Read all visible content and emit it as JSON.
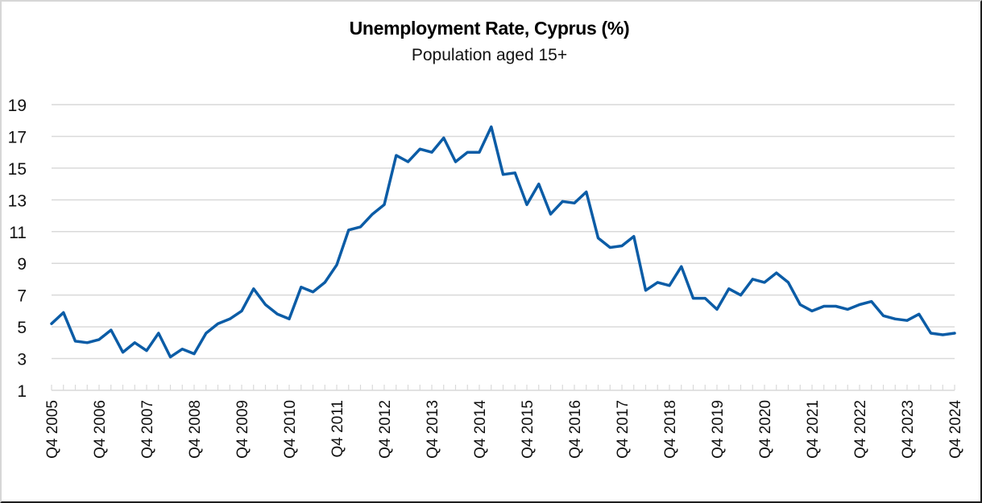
{
  "chart_data": {
    "type": "line",
    "title": "Unemployment Rate, Cyprus (%)",
    "subtitle": "Population aged 15+",
    "xlabel": "",
    "ylabel": "",
    "ylim": [
      1,
      19
    ],
    "yticks": [
      1,
      3,
      5,
      7,
      9,
      11,
      13,
      15,
      17,
      19
    ],
    "grid": true,
    "legend": null,
    "x_tick_labels": [
      "Q4 2005",
      "Q4 2006",
      "Q4 2007",
      "Q4 2008",
      "Q4 2009",
      "Q4 2010",
      "Q4 2011",
      "Q4 2012",
      "Q4 2013",
      "Q4 2014",
      "Q4 2015",
      "Q4 2016",
      "Q4 2017",
      "Q4 2018",
      "Q4 2019",
      "Q4 2020",
      "Q4 2021",
      "Q4 2022",
      "Q4 2023",
      "Q4 2024"
    ],
    "x": [
      "Q4 2005",
      "Q1 2006",
      "Q2 2006",
      "Q3 2006",
      "Q4 2006",
      "Q1 2007",
      "Q2 2007",
      "Q3 2007",
      "Q4 2007",
      "Q1 2008",
      "Q2 2008",
      "Q3 2008",
      "Q4 2008",
      "Q1 2009",
      "Q2 2009",
      "Q3 2009",
      "Q4 2009",
      "Q1 2010",
      "Q2 2010",
      "Q3 2010",
      "Q4 2010",
      "Q1 2011",
      "Q2 2011",
      "Q3 2011",
      "Q4 2011",
      "Q1 2012",
      "Q2 2012",
      "Q3 2012",
      "Q4 2012",
      "Q1 2013",
      "Q2 2013",
      "Q3 2013",
      "Q4 2013",
      "Q1 2014",
      "Q2 2014",
      "Q3 2014",
      "Q4 2014",
      "Q1 2015",
      "Q2 2015",
      "Q3 2015",
      "Q4 2015",
      "Q1 2016",
      "Q2 2016",
      "Q3 2016",
      "Q4 2016",
      "Q1 2017",
      "Q2 2017",
      "Q3 2017",
      "Q4 2017",
      "Q1 2018",
      "Q2 2018",
      "Q3 2018",
      "Q4 2018",
      "Q1 2019",
      "Q2 2019",
      "Q3 2019",
      "Q4 2019",
      "Q1 2020",
      "Q2 2020",
      "Q3 2020",
      "Q4 2020",
      "Q1 2021",
      "Q2 2021",
      "Q3 2021",
      "Q4 2021",
      "Q1 2022",
      "Q2 2022",
      "Q3 2022",
      "Q4 2022",
      "Q1 2023",
      "Q2 2023",
      "Q3 2023",
      "Q4 2023",
      "Q1 2024",
      "Q2 2024",
      "Q3 2024",
      "Q4 2024"
    ],
    "series": [
      {
        "name": "Unemployment Rate, Cyprus (%)",
        "color": "#0B5CA6",
        "values": [
          5.2,
          5.9,
          4.1,
          4.0,
          4.2,
          4.8,
          3.4,
          4.0,
          3.5,
          4.6,
          3.1,
          3.6,
          3.3,
          4.6,
          5.2,
          5.5,
          6.0,
          7.4,
          6.4,
          5.8,
          5.5,
          7.5,
          7.2,
          7.8,
          8.9,
          11.1,
          11.3,
          12.1,
          12.7,
          15.8,
          15.4,
          16.2,
          16.0,
          16.9,
          15.4,
          16.0,
          16.0,
          17.6,
          14.6,
          14.7,
          12.7,
          14.0,
          12.1,
          12.9,
          12.8,
          13.5,
          10.6,
          10.0,
          10.1,
          10.7,
          7.3,
          7.8,
          7.6,
          8.8,
          6.8,
          6.8,
          6.1,
          7.4,
          7.0,
          8.0,
          7.8,
          8.4,
          7.8,
          6.4,
          6.0,
          6.3,
          6.3,
          6.1,
          6.4,
          6.6,
          5.7,
          5.5,
          5.4,
          5.8,
          4.6,
          4.5,
          4.6
        ]
      }
    ]
  },
  "colors": {
    "line": "#0B5CA6",
    "grid": "#d9d9d9",
    "axis": "#d9d9d9"
  }
}
